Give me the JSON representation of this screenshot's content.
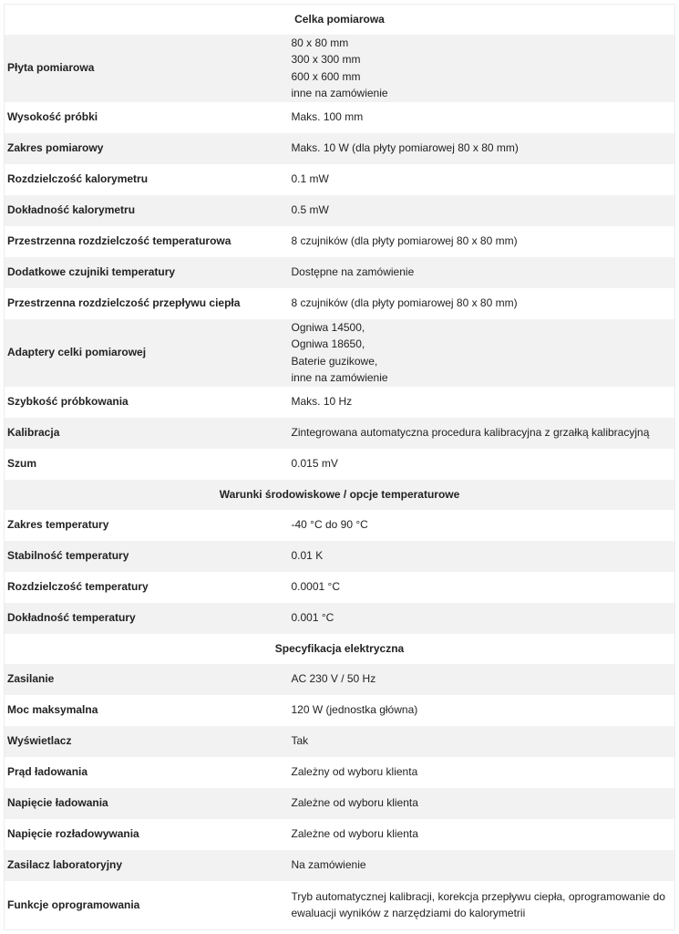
{
  "sections": [
    {
      "title": "Celka pomiarowa",
      "rows": [
        {
          "label": "Płyta pomiarowa",
          "value": [
            "80 x 80 mm",
            "300 x 300 mm",
            "600 x 600 mm",
            "inne na zamówienie"
          ]
        },
        {
          "label": "Wysokość próbki",
          "value": [
            "Maks. 100 mm"
          ]
        },
        {
          "label": "Zakres pomiarowy",
          "value": [
            "Maks. 10 W (dla płyty pomiarowej 80 x 80 mm)"
          ]
        },
        {
          "label": "Rozdzielczość kalorymetru",
          "value": [
            "0.1 mW"
          ]
        },
        {
          "label": "Dokładność kalorymetru",
          "value": [
            "0.5 mW"
          ]
        },
        {
          "label": "Przestrzenna rozdzielczość temperaturowa",
          "value": [
            "8 czujników (dla płyty pomiarowej 80 x 80 mm)"
          ]
        },
        {
          "label": "Dodatkowe czujniki temperatury",
          "value": [
            "Dostępne na zamówienie"
          ]
        },
        {
          "label": "Przestrzenna rozdzielczość przepływu ciepła",
          "value": [
            "8 czujników (dla płyty pomiarowej 80 x 80 mm)"
          ]
        },
        {
          "label": "Adaptery celki pomiarowej",
          "value": [
            "Ogniwa 14500,",
            "Ogniwa 18650,",
            "Baterie guzikowe,",
            "inne na zamówienie"
          ]
        },
        {
          "label": "Szybkość próbkowania",
          "value": [
            "Maks. 10 Hz"
          ]
        },
        {
          "label": "Kalibracja",
          "value": [
            "Zintegrowana automatyczna procedura kalibracyjna z grzałką kalibracyjną"
          ]
        },
        {
          "label": "Szum",
          "value": [
            "0.015 mV"
          ]
        }
      ]
    },
    {
      "title": "Warunki środowiskowe / opcje temperaturowe",
      "rows": [
        {
          "label": "Zakres temperatury",
          "value": [
            "-40 °C do 90 °C"
          ]
        },
        {
          "label": "Stabilność temperatury",
          "value": [
            "0.01 K"
          ]
        },
        {
          "label": "Rozdzielczość temperatury",
          "value": [
            "0.0001 °C"
          ]
        },
        {
          "label": "Dokładność temperatury",
          "value": [
            "0.001 °C"
          ]
        }
      ]
    },
    {
      "title": "Specyfikacja elektryczna",
      "rows": [
        {
          "label": "Zasilanie",
          "value": [
            "AC 230 V / 50 Hz"
          ]
        },
        {
          "label": "Moc maksymalna",
          "value": [
            "120 W (jednostka główna)"
          ]
        },
        {
          "label": "Wyświetlacz",
          "value": [
            "Tak"
          ]
        },
        {
          "label": "Prąd ładowania",
          "value": [
            "Zależny od wyboru klienta"
          ]
        },
        {
          "label": "Napięcie ładowania",
          "value": [
            "Zależne od wyboru klienta"
          ]
        },
        {
          "label": "Napięcie rozładowywania",
          "value": [
            "Zależne od wyboru klienta"
          ]
        },
        {
          "label": "Zasilacz laboratoryjny",
          "value": [
            "Na zamówienie"
          ]
        },
        {
          "label": "Funkcje oprogramowania",
          "value": [
            "Tryb automatycznej kalibracji, korekcja przepływu ciepła, oprogramowanie do ewaluacji wyników z narzędziami do kalorymetrii"
          ]
        }
      ]
    }
  ]
}
